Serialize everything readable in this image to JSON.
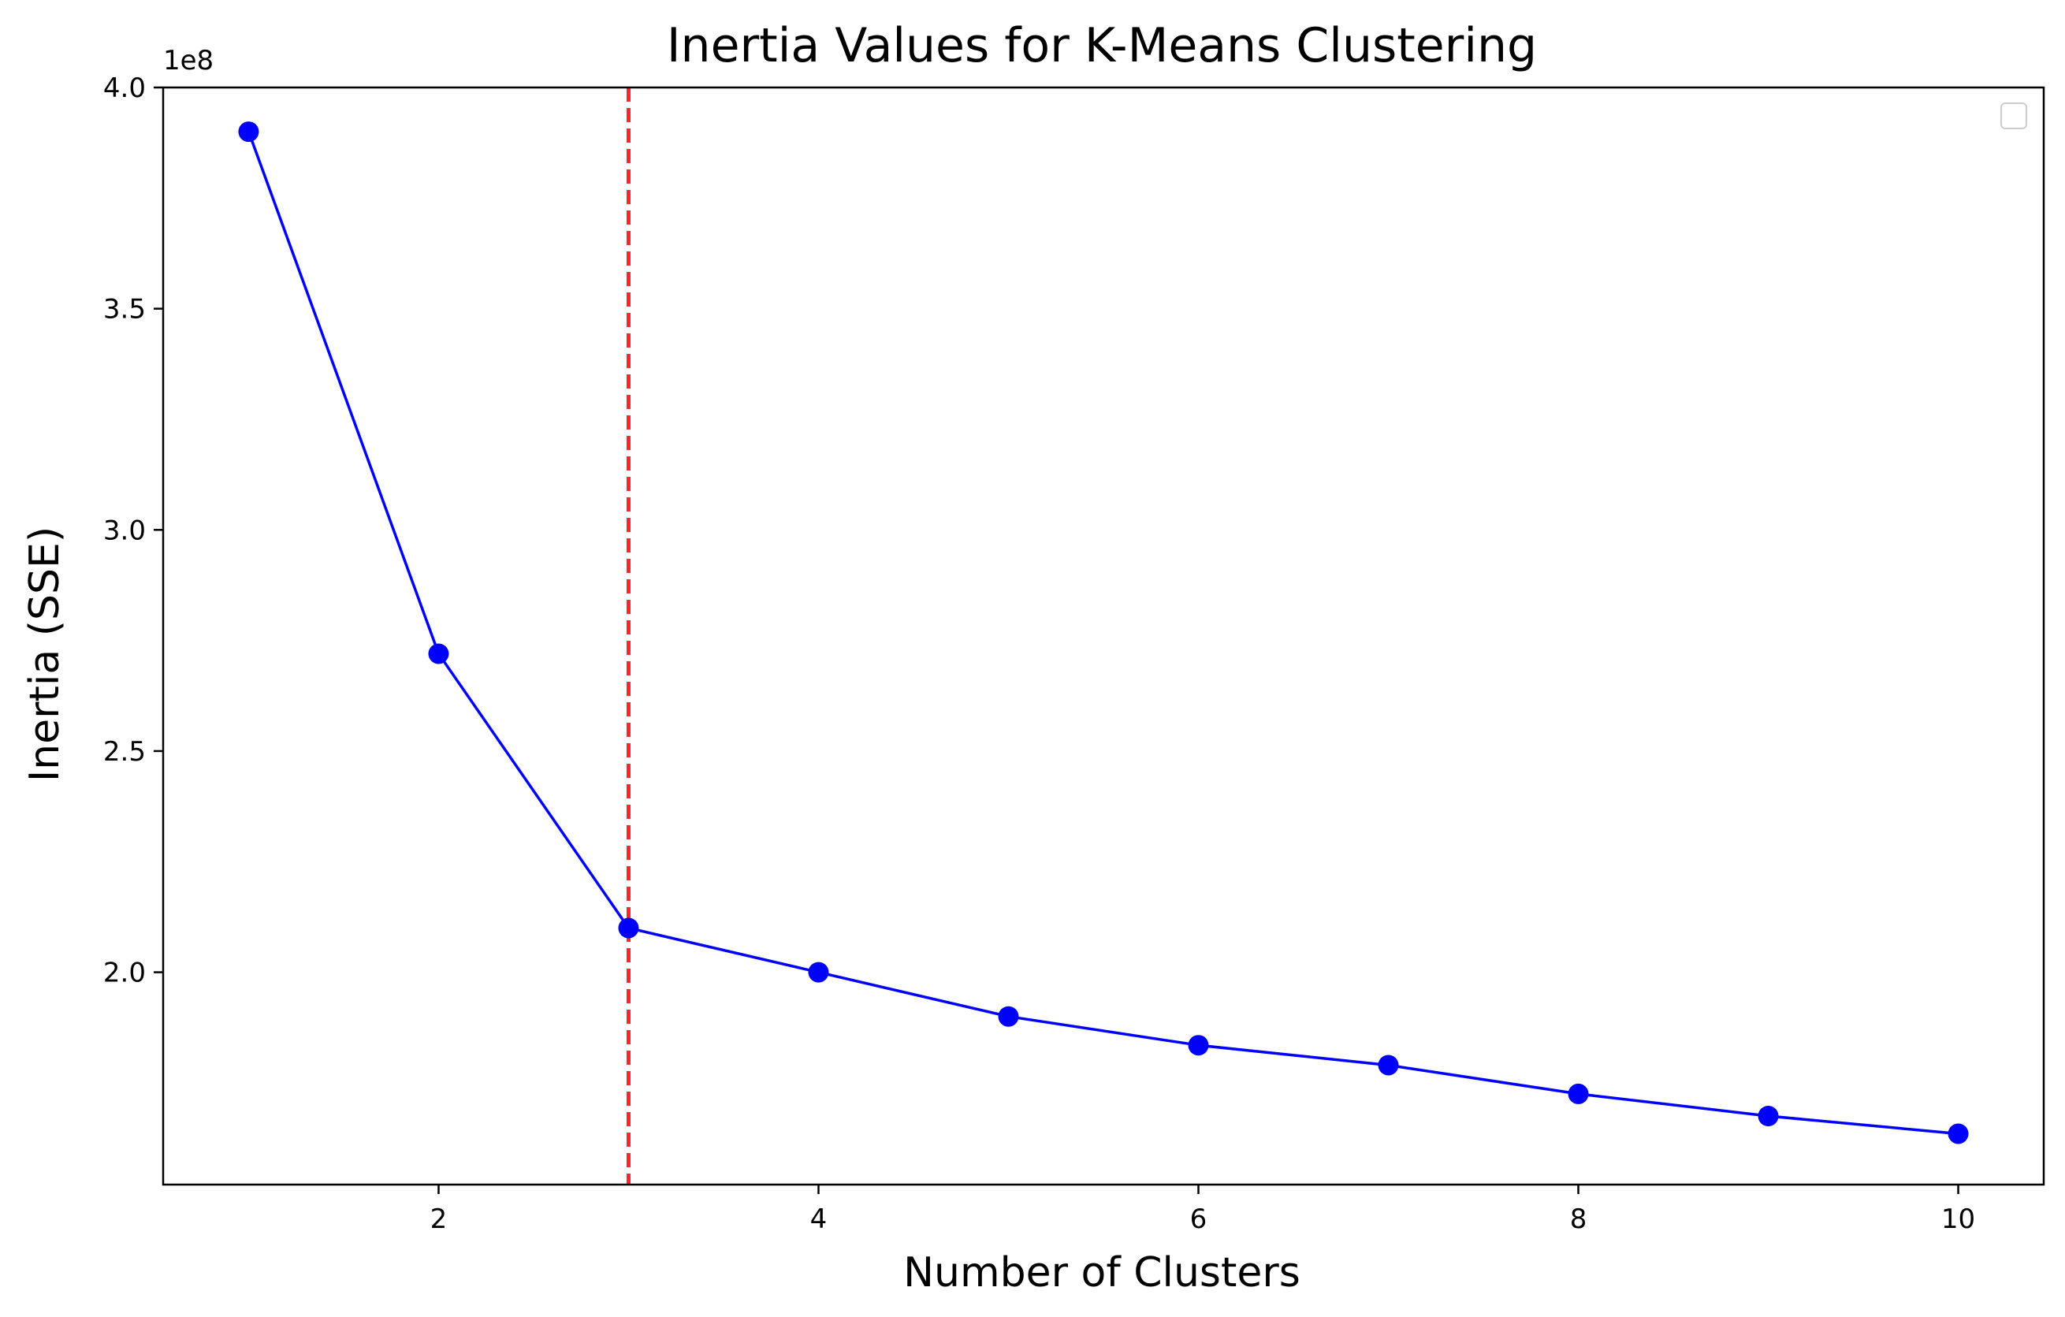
{
  "chart_data": {
    "type": "line",
    "title": "Inertia Values for K-Means Clustering",
    "xlabel": "Number of Clusters",
    "ylabel": "Inertia (SSE)",
    "y_offset_label": "1e8",
    "xlim": [
      0.55,
      10.45
    ],
    "ylim": [
      152000000,
      400000000
    ],
    "x_ticks": [
      2,
      4,
      6,
      8,
      10
    ],
    "x_tick_labels": [
      "2",
      "4",
      "6",
      "8",
      "10"
    ],
    "y_ticks": [
      200000000,
      250000000,
      300000000,
      350000000,
      400000000
    ],
    "y_tick_labels": [
      "2.0",
      "2.5",
      "3.0",
      "3.5",
      "4.0"
    ],
    "grid": false,
    "legend": "top-right, empty",
    "series": [
      {
        "x": [
          1,
          2,
          3,
          4,
          5,
          6,
          7,
          8,
          9,
          10
        ],
        "values": [
          390000000,
          272000000,
          210000000,
          200000000,
          190000000,
          183500000,
          179000000,
          172500000,
          167500000,
          163500000
        ],
        "color": "#0000ff",
        "marker": "circle"
      }
    ],
    "vline": {
      "x": 3,
      "color": "#ff0000",
      "style": "dashed"
    }
  }
}
